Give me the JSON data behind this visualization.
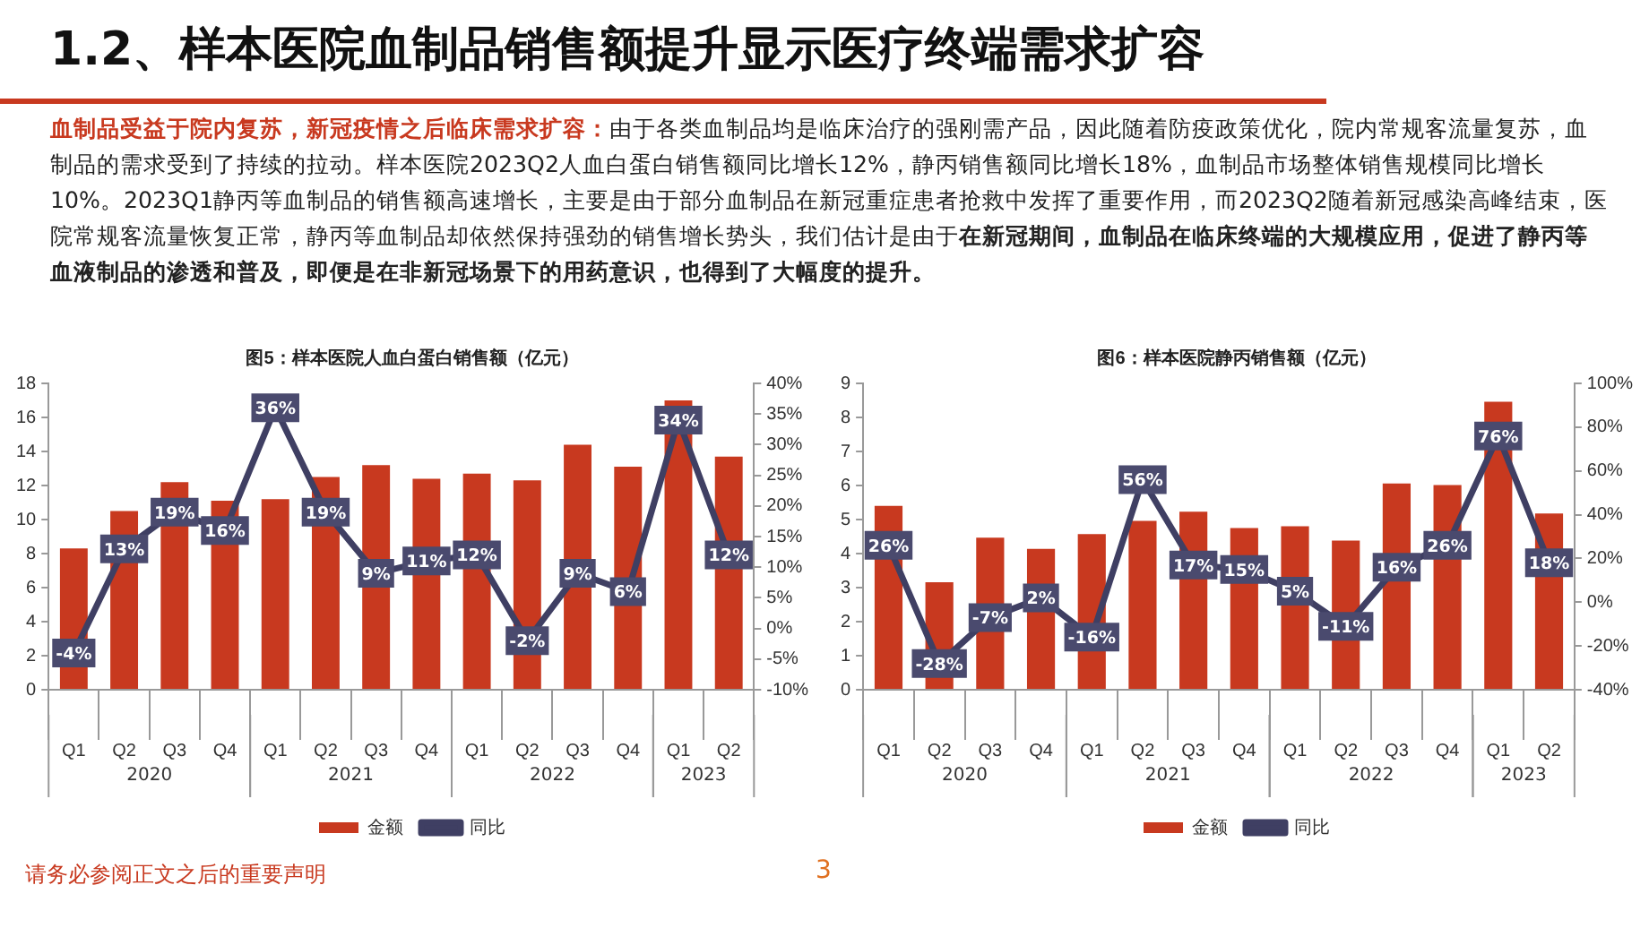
{
  "chart_data": [
    {
      "type": "other",
      "title": "1.2、样本医院血制品销售额提升显示医疗终端需求扩容",
      "annotations": [
        "血制品受益于院内复苏，新冠疫情之后临床需求扩容：",
        "由于各类血制品均是临床治疗的强刚需产品，因此随着防疫政策优化，院内常规客流量复苏，血制品的需求受到了持续的拉动。样本医院2023Q2人血白蛋白销售额同比增长12%，静丙销售额同比增长18%，血制品市场整体销售规模同比增长10%。2023Q1静丙等血制品的销售额高速增长，主要是由于部分血制品在新冠重症患者抢救中发挥了重要作用，而2023Q2随着新冠感染高峰结束，医院常规客流量恢复正常，静丙等血制品却依然保持强劲的销售增长势头，我们估计是由于",
        "在新冠期间，血制品在临床终端的大规模应用，促进了静丙等血液制品的渗透和普及，即便是在非新冠场景下的用药意识，也得到了大幅度的提升。",
        "请务必参阅正文之后的重要声明",
        "3"
      ]
    },
    {
      "type": "bar",
      "title": "图5：样本医院人血白蛋白销售额（亿元）",
      "categories": [
        "Q1",
        "Q2",
        "Q3",
        "Q4",
        "Q1",
        "Q2",
        "Q3",
        "Q4",
        "Q1",
        "Q2",
        "Q3",
        "Q4",
        "Q1",
        "Q2"
      ],
      "annotations": [
        "2020",
        "2021",
        "2022",
        "2023"
      ],
      "legend": "bottom",
      "marker": "square",
      "series": [
        {
          "name": "金额",
          "type": "bar",
          "color": "#c8391f",
          "values": [
            8.3,
            10.5,
            12.2,
            11.1,
            11.2,
            12.5,
            13.2,
            12.4,
            12.7,
            12.3,
            14.4,
            13.1,
            17.0,
            13.7
          ]
        },
        {
          "name": "同比",
          "type": "line",
          "axis": "y2",
          "color": "#3f3f63",
          "values": [
            -4,
            13,
            19,
            16,
            36,
            19,
            9,
            11,
            12,
            -2,
            9,
            6,
            34,
            12
          ],
          "value_labels": [
            "-4%",
            "13%",
            "19%",
            "16%",
            "36%",
            "19%",
            "9%",
            "11%",
            "12%",
            "-2%",
            "9%",
            "6%",
            "34%",
            "12%"
          ]
        }
      ],
      "ylim": [
        0,
        18
      ],
      "yticks": [
        0,
        2,
        4,
        6,
        8,
        10,
        12,
        14,
        16,
        18
      ],
      "y2lim": [
        -10,
        40
      ],
      "y2ticks": [
        {
          "value": -10,
          "label": "-10%"
        },
        {
          "value": -5,
          "label": "-5%"
        },
        {
          "value": 0,
          "label": "0%"
        },
        {
          "value": 5,
          "label": "5%"
        },
        {
          "value": 10,
          "label": "10%"
        },
        {
          "value": 15,
          "label": "15%"
        },
        {
          "value": 20,
          "label": "20%"
        },
        {
          "value": 25,
          "label": "25%"
        },
        {
          "value": 30,
          "label": "30%"
        },
        {
          "value": 35,
          "label": "35%"
        },
        {
          "value": 40,
          "label": "40%"
        }
      ]
    },
    {
      "type": "bar",
      "title": "图6：样本医院静丙销售额（亿元）",
      "categories": [
        "Q1",
        "Q2",
        "Q3",
        "Q4",
        "Q1",
        "Q2",
        "Q3",
        "Q4",
        "Q1",
        "Q2",
        "Q3",
        "Q4",
        "Q1",
        "Q2"
      ],
      "annotations": [
        "2020",
        "2021",
        "2022",
        "2023"
      ],
      "legend": "bottom",
      "marker": "square",
      "series": [
        {
          "name": "金额",
          "type": "bar",
          "color": "#c8391f",
          "values": [
            5.4,
            3.16,
            4.47,
            4.14,
            4.57,
            4.96,
            5.23,
            4.75,
            4.8,
            4.38,
            6.06,
            6.01,
            8.46,
            5.18
          ]
        },
        {
          "name": "同比",
          "type": "line",
          "axis": "y2",
          "color": "#3f3f63",
          "values": [
            26,
            -28,
            -7,
            2,
            -16,
            56,
            17,
            15,
            5,
            -11,
            16,
            26,
            76,
            18
          ],
          "value_labels": [
            "26%",
            "-28%",
            "-7%",
            "2%",
            "-16%",
            "56%",
            "17%",
            "15%",
            "5%",
            "-11%",
            "16%",
            "26%",
            "76%",
            "18%"
          ]
        }
      ],
      "ylim": [
        0,
        9
      ],
      "yticks": [
        0,
        1,
        2,
        3,
        4,
        5,
        6,
        7,
        8,
        9
      ],
      "y2lim": [
        -40,
        100
      ],
      "y2ticks": [
        {
          "value": -40,
          "label": "-40%"
        },
        {
          "value": -20,
          "label": "-20%"
        },
        {
          "value": 0,
          "label": "0%"
        },
        {
          "value": 20,
          "label": "20%"
        },
        {
          "value": 40,
          "label": "40%"
        },
        {
          "value": 60,
          "label": "60%"
        },
        {
          "value": 80,
          "label": "80%"
        },
        {
          "value": 100,
          "label": "100%"
        }
      ]
    }
  ]
}
